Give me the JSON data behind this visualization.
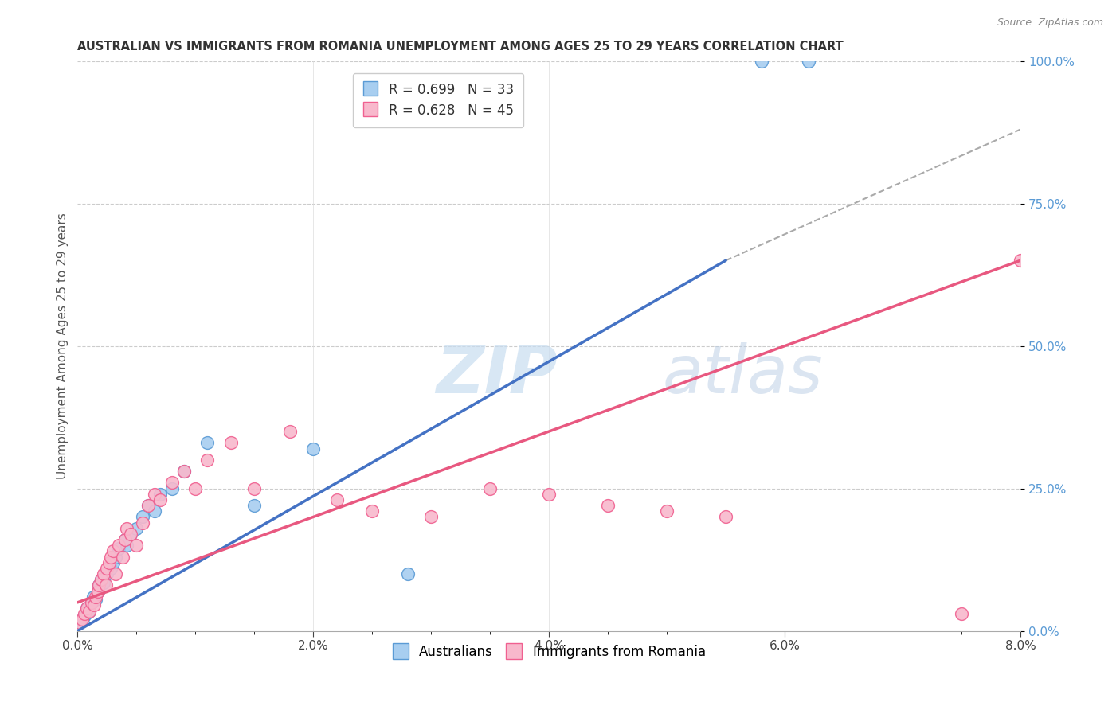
{
  "title": "AUSTRALIAN VS IMMIGRANTS FROM ROMANIA UNEMPLOYMENT AMONG AGES 25 TO 29 YEARS CORRELATION CHART",
  "source": "Source: ZipAtlas.com",
  "ylabel": "Unemployment Among Ages 25 to 29 years",
  "xlim": [
    0.0,
    8.0
  ],
  "ylim": [
    0.0,
    100.0
  ],
  "legend_r1": "R = 0.699",
  "legend_n1": "N = 33",
  "legend_r2": "R = 0.628",
  "legend_n2": "N = 45",
  "color_aus_face": "#a8cef0",
  "color_aus_edge": "#5b9bd5",
  "color_rom_face": "#f8b8cc",
  "color_rom_edge": "#f06090",
  "color_line_aus": "#4472c4",
  "color_line_rom": "#e85880",
  "color_dashed": "#aaaaaa",
  "watermark_color": "#dce8f5",
  "aus_x": [
    0.02,
    0.05,
    0.07,
    0.08,
    0.1,
    0.12,
    0.13,
    0.15,
    0.17,
    0.18,
    0.2,
    0.22,
    0.25,
    0.28,
    0.3,
    0.32,
    0.35,
    0.4,
    0.42,
    0.45,
    0.5,
    0.55,
    0.6,
    0.65,
    0.7,
    0.8,
    0.9,
    1.1,
    1.5,
    2.0,
    2.8,
    5.8,
    6.2
  ],
  "aus_y": [
    1.5,
    2.5,
    3.0,
    4.0,
    3.5,
    5.0,
    6.0,
    5.5,
    7.0,
    8.0,
    9.0,
    8.5,
    10.0,
    11.0,
    12.0,
    13.0,
    14.5,
    16.0,
    15.0,
    17.0,
    18.0,
    20.0,
    22.0,
    21.0,
    24.0,
    25.0,
    28.0,
    33.0,
    22.0,
    32.0,
    10.0,
    100.0,
    100.0
  ],
  "rom_x": [
    0.02,
    0.04,
    0.06,
    0.08,
    0.1,
    0.12,
    0.14,
    0.15,
    0.17,
    0.18,
    0.2,
    0.22,
    0.24,
    0.25,
    0.27,
    0.28,
    0.3,
    0.32,
    0.35,
    0.38,
    0.4,
    0.42,
    0.45,
    0.5,
    0.55,
    0.6,
    0.65,
    0.7,
    0.8,
    0.9,
    1.0,
    1.1,
    1.3,
    1.5,
    1.8,
    2.2,
    2.5,
    3.0,
    3.5,
    4.0,
    4.5,
    5.0,
    5.5,
    7.5,
    8.0
  ],
  "rom_y": [
    1.5,
    2.0,
    3.0,
    4.0,
    3.5,
    5.0,
    4.5,
    6.0,
    7.0,
    8.0,
    9.0,
    10.0,
    8.0,
    11.0,
    12.0,
    13.0,
    14.0,
    10.0,
    15.0,
    13.0,
    16.0,
    18.0,
    17.0,
    15.0,
    19.0,
    22.0,
    24.0,
    23.0,
    26.0,
    28.0,
    25.0,
    30.0,
    33.0,
    25.0,
    35.0,
    23.0,
    21.0,
    20.0,
    25.0,
    24.0,
    22.0,
    21.0,
    20.0,
    3.0,
    65.0
  ],
  "aus_line_x0": 0.0,
  "aus_line_y0": 0.0,
  "aus_line_x1": 5.5,
  "aus_line_y1": 65.0,
  "rom_line_x0": 0.0,
  "rom_line_y0": 5.0,
  "rom_line_x1": 8.0,
  "rom_line_y1": 65.0,
  "dash_line_x0": 5.5,
  "dash_line_y0": 65.0,
  "dash_line_x1": 8.0,
  "dash_line_y1": 88.0
}
